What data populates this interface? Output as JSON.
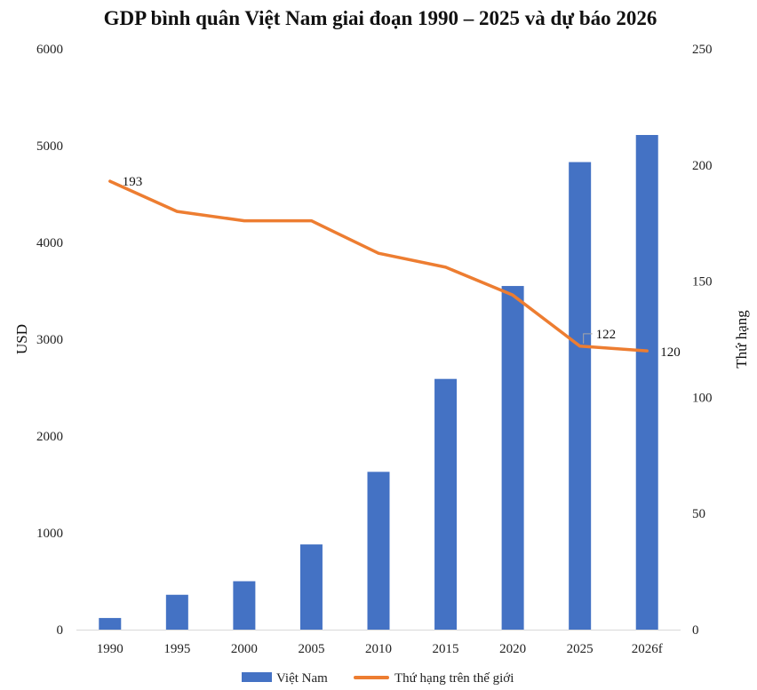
{
  "chart_data": {
    "type": "bar+line",
    "title": "GDP bình quân Việt Nam giai đoạn 1990 – 2025 và dự báo 2026",
    "categories": [
      "1990",
      "1995",
      "2000",
      "2005",
      "2010",
      "2015",
      "2020",
      "2025",
      "2026f"
    ],
    "ylabel": "USD",
    "y2label": "Thứ hạng",
    "ylim": [
      0,
      6000
    ],
    "y2lim": [
      0,
      250
    ],
    "yticks": [
      "0",
      "1000",
      "2000",
      "3000",
      "4000",
      "5000",
      "6000"
    ],
    "y2ticks": [
      "0",
      "50",
      "100",
      "150",
      "200",
      "250"
    ],
    "grid": false,
    "legend_position": "bottom",
    "series": [
      {
        "name": "Việt Nam",
        "type": "bar",
        "axis": "left",
        "color": "#4472C4",
        "values": [
          120,
          360,
          500,
          880,
          1630,
          2590,
          3550,
          4830,
          5110
        ]
      },
      {
        "name": "Thứ hạng trên thế giới",
        "type": "line",
        "axis": "right",
        "color": "#ED7D31",
        "values": [
          193,
          180,
          176,
          176,
          162,
          156,
          144,
          122,
          120
        ]
      }
    ],
    "data_labels": [
      {
        "series": 1,
        "index": 0,
        "text": "193"
      },
      {
        "series": 1,
        "index": 7,
        "text": "122"
      },
      {
        "series": 1,
        "index": 8,
        "text": "120"
      }
    ]
  }
}
